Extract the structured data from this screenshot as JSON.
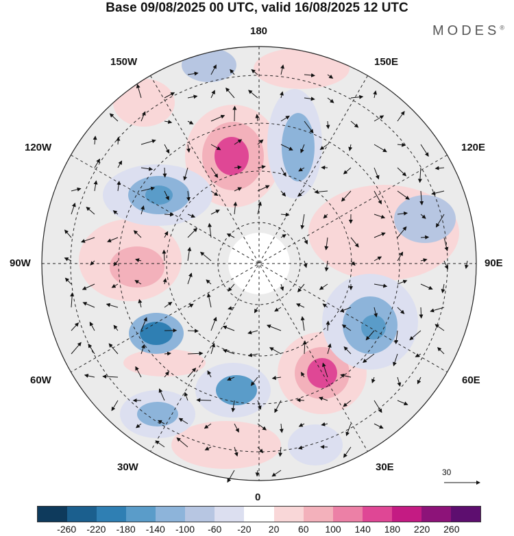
{
  "title": "Base 09/08/2025 00 UTC, valid 16/08/2025 12 UTC",
  "brand": "MODES",
  "brand_mark": "®",
  "longitude_labels": {
    "top": "180",
    "bottom": "0",
    "left": "90W",
    "right": "90E",
    "upper_left": "150W",
    "upper_right": "150E",
    "mid_upper_left": "120W",
    "mid_upper_right": "120E",
    "mid_lower_left": "60W",
    "mid_lower_right": "60E",
    "lower_left": "30W",
    "lower_right": "30E"
  },
  "wind_reference": {
    "label": "30"
  },
  "colorbar": {
    "ticks": [
      "-260",
      "-220",
      "-180",
      "-140",
      "-100",
      "-60",
      "-20",
      "20",
      "60",
      "100",
      "140",
      "180",
      "220",
      "260"
    ],
    "colors": [
      "#0e3a5c",
      "#1b5f8e",
      "#2f7fb3",
      "#5a9cc9",
      "#8db4da",
      "#b7c6e2",
      "#dcdff0",
      "#ffffff",
      "#f9d7d8",
      "#f3b1bb",
      "#ec80a6",
      "#df4795",
      "#c41b83",
      "#8d1379",
      "#5d0e6f"
    ]
  }
}
